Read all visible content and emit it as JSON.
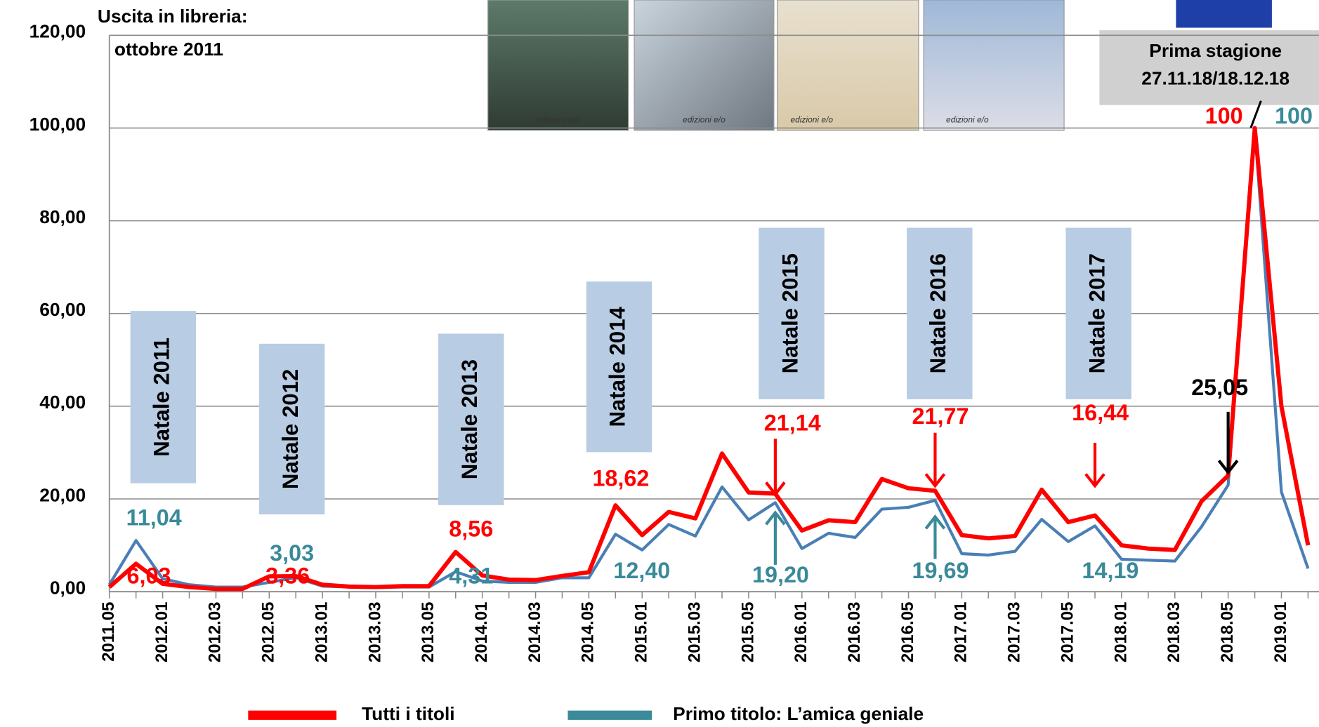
{
  "chart_data": {
    "type": "line",
    "categories": [
      "2011.05",
      null,
      "2012.01",
      null,
      "2012.03",
      null,
      "2012.05",
      null,
      "2013.01",
      null,
      "2013.03",
      null,
      "2013.05",
      null,
      "2014.01",
      null,
      "2014.03",
      null,
      "2014.05",
      null,
      "2015.01",
      null,
      "2015.03",
      null,
      "2015.05",
      null,
      "2016.01",
      null,
      "2016.03",
      null,
      "2016.05",
      null,
      "2017.01",
      null,
      "2017.03",
      null,
      "2017.05",
      null,
      "2018.01",
      null,
      "2018.03",
      null,
      "2018.05",
      null,
      "2019.01",
      null
    ],
    "series": [
      {
        "name": "Tutti  i titoli",
        "color": "#ff0000",
        "values": [
          1.0,
          6.03,
          1.7,
          1.0,
          0.6,
          0.6,
          3.3,
          3.36,
          1.5,
          1.1,
          1.0,
          1.2,
          1.2,
          8.56,
          3.5,
          2.6,
          2.5,
          3.4,
          4.2,
          18.62,
          12.2,
          17.2,
          15.8,
          29.8,
          21.4,
          21.14,
          13.2,
          15.4,
          15.0,
          24.3,
          22.3,
          21.77,
          12.2,
          11.5,
          12.0,
          22.0,
          15.0,
          16.44,
          10.0,
          9.3,
          9.0,
          19.5,
          25.05,
          100,
          40,
          10
        ],
        "value_labels": [
          null,
          "6,03",
          null,
          null,
          null,
          null,
          null,
          "3,36",
          null,
          null,
          null,
          null,
          null,
          "8,56",
          null,
          null,
          null,
          null,
          null,
          "18,62",
          null,
          null,
          null,
          null,
          null,
          "21,14",
          null,
          null,
          null,
          null,
          null,
          "21,77",
          null,
          null,
          null,
          null,
          null,
          "16,44",
          null,
          null,
          null,
          null,
          "25,05",
          "100",
          null,
          null
        ]
      },
      {
        "name": "Primo titolo: L’amica geniale",
        "color": "#4a7fb5",
        "values": [
          1.5,
          11.04,
          2.8,
          1.5,
          1.0,
          1.0,
          2.0,
          3.03,
          1.2,
          1.0,
          0.9,
          1.0,
          1.0,
          4.31,
          2.3,
          2.0,
          2.0,
          3.0,
          3.0,
          12.4,
          9.0,
          14.5,
          12.0,
          22.6,
          15.5,
          19.2,
          9.3,
          12.6,
          11.7,
          17.8,
          18.2,
          19.69,
          8.2,
          7.9,
          8.7,
          15.6,
          10.8,
          14.19,
          7.0,
          6.8,
          6.6,
          14.0,
          23.0,
          100,
          21.5,
          5.0
        ],
        "value_labels": [
          null,
          "11,04",
          null,
          null,
          null,
          null,
          null,
          "3,03",
          null,
          null,
          null,
          null,
          null,
          "4,31",
          null,
          null,
          null,
          null,
          null,
          "12,40",
          null,
          null,
          null,
          null,
          null,
          "19,20",
          null,
          null,
          null,
          null,
          null,
          "19,69",
          null,
          null,
          null,
          null,
          null,
          "14,19",
          null,
          null,
          null,
          null,
          null,
          "100",
          null,
          null
        ]
      }
    ],
    "ylim": [
      0,
      120
    ],
    "yticks": [
      {
        "value": 0,
        "label": "0,00"
      },
      {
        "value": 20,
        "label": "20,00"
      },
      {
        "value": 40,
        "label": "40,00"
      },
      {
        "value": 60,
        "label": "60,00"
      },
      {
        "value": 80,
        "label": "80,00"
      },
      {
        "value": 100,
        "label": "100,00"
      },
      {
        "value": 120,
        "label": "120,00"
      }
    ],
    "grid": true,
    "legend": "bottom",
    "annotations": {
      "release": [
        "Uscita in libreria:",
        "ottobre 2011"
      ],
      "christmas": [
        "Natale 2011",
        "Natale 2012",
        "Natale 2013",
        "Natale 2014",
        "Natale 2015",
        "Natale 2016",
        "Natale 2017"
      ],
      "season": [
        "Prima stagione",
        "27.11.18/18.12.18"
      ],
      "book_publisher": [
        "edizioni e/o",
        "edizioni e/o",
        "edizioni e/o",
        "edizioni e/o"
      ]
    }
  }
}
